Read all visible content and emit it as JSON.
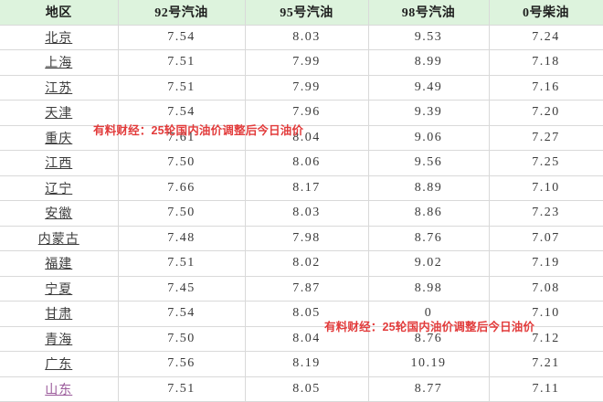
{
  "colors": {
    "header_bg": "#ddf3dd",
    "border": "#d9d9d9",
    "outer_border": "#8a8a8a",
    "text": "#3b3b3b",
    "link": "#3b3b3b",
    "visited_link": "#9b5a9b",
    "watermark": "#e23b3b"
  },
  "table": {
    "headers": [
      "地区",
      "92号汽油",
      "95号汽油",
      "98号汽油",
      "0号柴油"
    ],
    "rows": [
      {
        "region": "北京",
        "visited": false,
        "values": [
          "7.54",
          "8.03",
          "9.53",
          "7.24"
        ]
      },
      {
        "region": "上海",
        "visited": false,
        "values": [
          "7.51",
          "7.99",
          "8.99",
          "7.18"
        ]
      },
      {
        "region": "江苏",
        "visited": false,
        "values": [
          "7.51",
          "7.99",
          "9.49",
          "7.16"
        ]
      },
      {
        "region": "天津",
        "visited": false,
        "values": [
          "7.54",
          "7.96",
          "9.39",
          "7.20"
        ]
      },
      {
        "region": "重庆",
        "visited": false,
        "values": [
          "7.61",
          "8.04",
          "9.06",
          "7.27"
        ]
      },
      {
        "region": "江西",
        "visited": false,
        "values": [
          "7.50",
          "8.06",
          "9.56",
          "7.25"
        ]
      },
      {
        "region": "辽宁",
        "visited": false,
        "values": [
          "7.66",
          "8.17",
          "8.89",
          "7.10"
        ]
      },
      {
        "region": "安徽",
        "visited": false,
        "values": [
          "7.50",
          "8.03",
          "8.86",
          "7.23"
        ]
      },
      {
        "region": "内蒙古",
        "visited": false,
        "values": [
          "7.48",
          "7.98",
          "8.76",
          "7.07"
        ]
      },
      {
        "region": "福建",
        "visited": false,
        "values": [
          "7.51",
          "8.02",
          "9.02",
          "7.19"
        ]
      },
      {
        "region": "宁夏",
        "visited": false,
        "values": [
          "7.45",
          "7.87",
          "8.98",
          "7.08"
        ]
      },
      {
        "region": "甘肃",
        "visited": false,
        "values": [
          "7.54",
          "8.05",
          "0",
          "7.10"
        ]
      },
      {
        "region": "青海",
        "visited": false,
        "values": [
          "7.50",
          "8.04",
          "8.76",
          "7.12"
        ]
      },
      {
        "region": "广东",
        "visited": false,
        "values": [
          "7.56",
          "8.19",
          "10.19",
          "7.21"
        ]
      },
      {
        "region": "山东",
        "visited": true,
        "values": [
          "7.51",
          "8.05",
          "8.77",
          "7.11"
        ]
      }
    ]
  },
  "watermarks": [
    {
      "text": "有料财经：25轮国内油价调整后今日油价"
    },
    {
      "text": "有料财经：25轮国内油价调整后今日油价"
    }
  ]
}
